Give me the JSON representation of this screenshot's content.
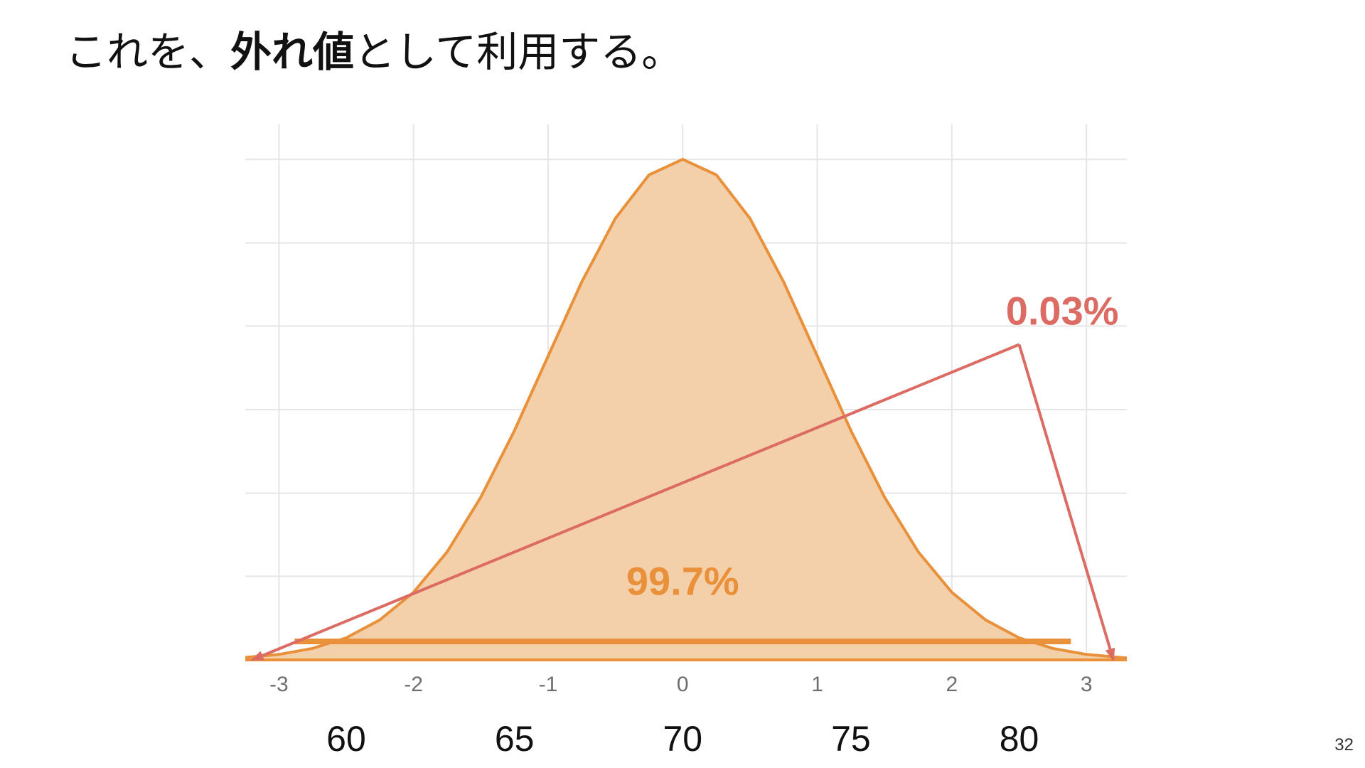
{
  "title": {
    "prefix": "これを、",
    "emphasis": "外れ値",
    "suffix": "として利用する。"
  },
  "page_number": "32",
  "colors": {
    "curve": "#e9913a",
    "fill": "#f4d0aa",
    "center_arrow": "#e9913a",
    "tail_arrow": "#dc6b63",
    "grid": "#e6e6e6"
  },
  "chart_data": {
    "type": "area",
    "title": "",
    "xlabel": "",
    "ylabel": "",
    "xlim": [
      -3.25,
      3.3
    ],
    "ylim": [
      0,
      1.02
    ],
    "grid": true,
    "legend": "none",
    "x_ticks": [
      -3,
      -2,
      -1,
      0,
      1,
      2,
      3
    ],
    "x_tick_labels": [
      "-3",
      "-2",
      "-1",
      "0",
      "1",
      "2",
      "3"
    ],
    "score_ticks": [
      -2.5,
      -1.25,
      0,
      1.25,
      2.5
    ],
    "score_labels": [
      "60",
      "65",
      "70",
      "75",
      "80"
    ],
    "y_gridlines": [
      0.167,
      0.333,
      0.5,
      0.667,
      0.833,
      1.0
    ],
    "series": [
      {
        "x": [
          -3.25,
          -3.0,
          -2.75,
          -2.5,
          -2.25,
          -2.0,
          -1.75,
          -1.5,
          -1.25,
          -1.0,
          -0.75,
          -0.5,
          -0.25,
          0.0,
          0.25,
          0.5,
          0.75,
          1.0,
          1.25,
          1.5,
          1.75,
          2.0,
          2.25,
          2.5,
          2.75,
          3.0,
          3.25,
          3.3
        ],
        "y": [
          0.005,
          0.011,
          0.023,
          0.044,
          0.08,
          0.135,
          0.216,
          0.325,
          0.458,
          0.607,
          0.755,
          0.882,
          0.969,
          1.0,
          0.969,
          0.882,
          0.755,
          0.607,
          0.458,
          0.325,
          0.216,
          0.135,
          0.08,
          0.044,
          0.023,
          0.011,
          0.005,
          0.004
        ]
      }
    ],
    "annotations": [
      {
        "text": "99.7%",
        "type": "double-arrow",
        "from": -3,
        "to": 3,
        "level": 0.037,
        "label_x": 0,
        "label_y": 0.13,
        "color": "#e9913a"
      },
      {
        "text": "0.03%",
        "type": "callout",
        "vertex": [
          2.5,
          0.63
        ],
        "targets": [
          [
            -3.2,
            0.0
          ],
          [
            3.2,
            0.0
          ]
        ],
        "label_x": 2.82,
        "label_y": 0.67,
        "color": "#dc6b63"
      }
    ]
  }
}
